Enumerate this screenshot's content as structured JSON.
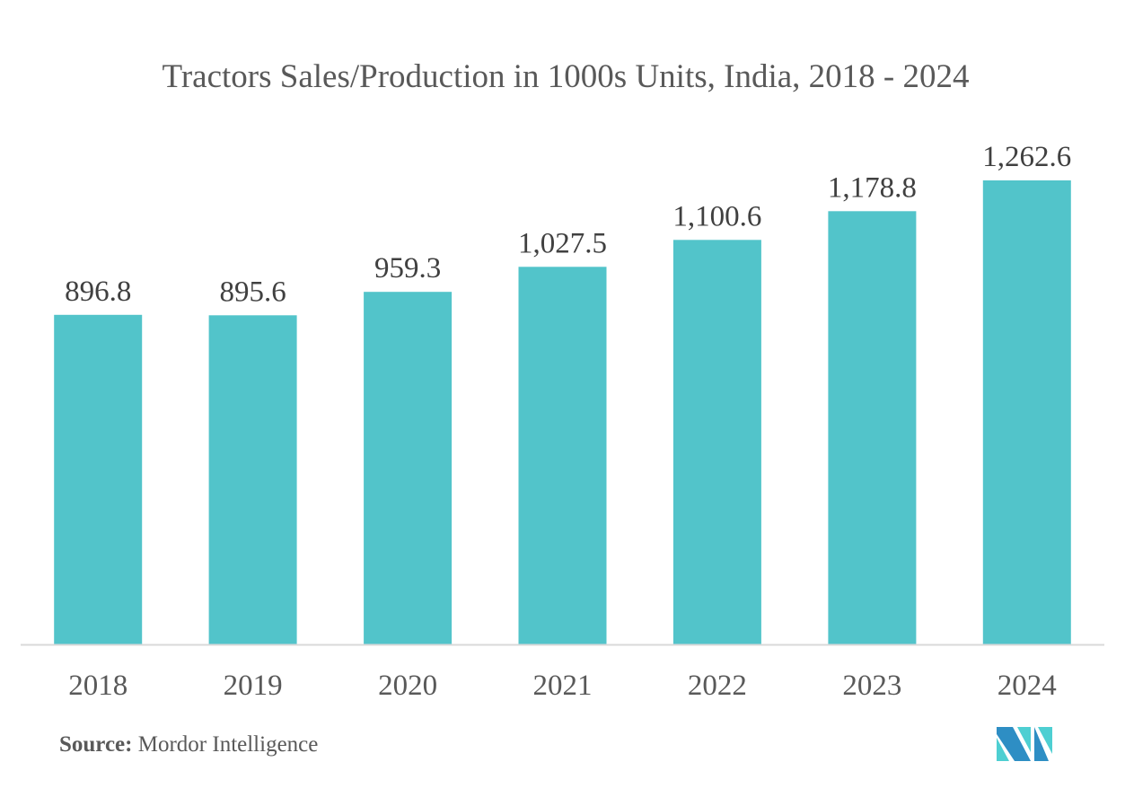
{
  "chart_data": {
    "type": "bar",
    "title": "Tractors Sales/Production in 1000s Units, India, 2018 - 2024",
    "xlabel": "",
    "ylabel": "",
    "categories": [
      "2018",
      "2019",
      "2020",
      "2021",
      "2022",
      "2023",
      "2024"
    ],
    "values": [
      896.8,
      895.6,
      959.3,
      1027.5,
      1100.6,
      1178.8,
      1262.6
    ],
    "value_labels": [
      "896.8",
      "895.6",
      "959.3",
      "1,027.5",
      "1,100.6",
      "1,178.8",
      "1,262.6"
    ],
    "ylim": [
      0,
      1262.6
    ],
    "grid": false,
    "legend": "none",
    "bar_color": "#52c4ca",
    "axis_color": "#d9d9d9"
  },
  "source": {
    "key": "Source:",
    "value": "Mordor Intelligence"
  },
  "logo": {
    "icon": "mordor-intelligence-logo-icon",
    "colors": [
      "#2e8ec4",
      "#4ecfd2"
    ]
  }
}
